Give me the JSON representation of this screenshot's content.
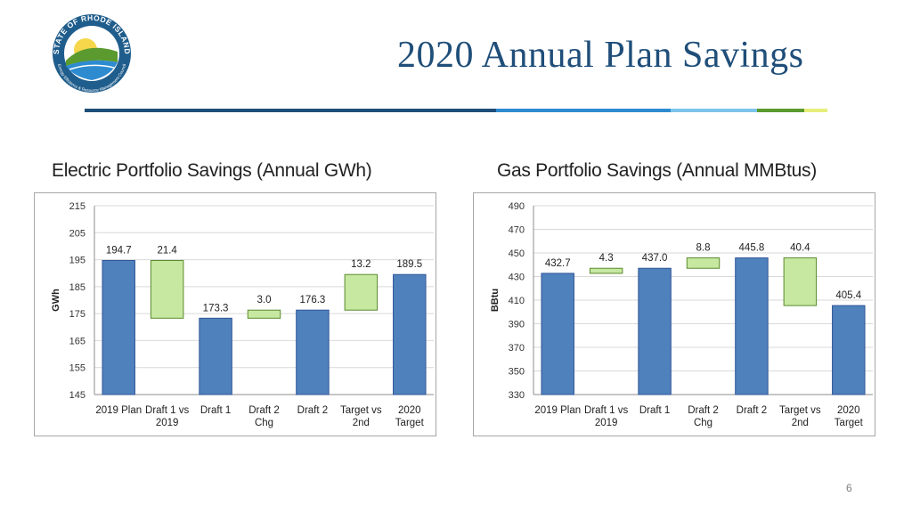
{
  "slide": {
    "title": "2020 Annual Plan Savings",
    "page_number": "6",
    "logo_text": "STATE OF RHODE ISLAND",
    "logo_subtext": "Energy Efficiency & Resource Management Council"
  },
  "colors": {
    "title": "#1f4e79",
    "bar_fill": "#4f81bd",
    "bar_stroke": "#2f5597",
    "delta_fill": "#c6e8a0",
    "delta_stroke": "#5b8a2e",
    "rule": [
      "#1f4e79",
      "#2e8bd0",
      "#7cc4ea",
      "#5b9a2e",
      "#e6ee7a"
    ]
  },
  "chart_data": [
    {
      "type": "bar",
      "subtype": "waterfall",
      "heading": "Electric Portfolio Savings (Annual GWh)",
      "ylabel": "GWh",
      "ylim": [
        145,
        215
      ],
      "yticks": [
        145,
        155,
        165,
        175,
        185,
        195,
        205,
        215
      ],
      "grid": true,
      "categories": [
        "2019 Plan",
        "Draft 1 vs 2019",
        "Draft 1",
        "Draft 2 Chg",
        "Draft 2",
        "Target vs 2nd",
        "2020 Target"
      ],
      "category_lines": [
        [
          "2019 Plan"
        ],
        [
          "Draft 1 vs",
          "2019"
        ],
        [
          "Draft 1"
        ],
        [
          "Draft 2",
          "Chg"
        ],
        [
          "Draft 2"
        ],
        [
          "Target vs",
          "2nd"
        ],
        [
          "2020",
          "Target"
        ]
      ],
      "bars": [
        {
          "kind": "total",
          "value": 194.7,
          "label": "194.7"
        },
        {
          "kind": "delta",
          "low": 173.3,
          "high": 194.7,
          "label": "21.4"
        },
        {
          "kind": "total",
          "value": 173.3,
          "label": "173.3"
        },
        {
          "kind": "delta",
          "low": 173.3,
          "high": 176.3,
          "label": "3.0"
        },
        {
          "kind": "total",
          "value": 176.3,
          "label": "176.3"
        },
        {
          "kind": "delta",
          "low": 176.3,
          "high": 189.5,
          "label": "13.2"
        },
        {
          "kind": "total",
          "value": 189.5,
          "label": "189.5"
        }
      ]
    },
    {
      "type": "bar",
      "subtype": "waterfall",
      "heading": "Gas Portfolio Savings (Annual MMBtus)",
      "ylabel": "BBtu",
      "ylim": [
        330,
        490
      ],
      "yticks": [
        330,
        350,
        370,
        390,
        410,
        430,
        450,
        470,
        490
      ],
      "grid": true,
      "categories": [
        "2019 Plan",
        "Draft 1 vs 2019",
        "Draft 1",
        "Draft 2 Chg",
        "Draft 2",
        "Target vs 2nd",
        "2020 Target"
      ],
      "category_lines": [
        [
          "2019 Plan"
        ],
        [
          "Draft 1 vs",
          "2019"
        ],
        [
          "Draft 1"
        ],
        [
          "Draft 2",
          "Chg"
        ],
        [
          "Draft 2"
        ],
        [
          "Target vs",
          "2nd"
        ],
        [
          "2020",
          "Target"
        ]
      ],
      "bars": [
        {
          "kind": "total",
          "value": 432.7,
          "label": "432.7"
        },
        {
          "kind": "delta",
          "low": 432.7,
          "high": 437.0,
          "label": "4.3"
        },
        {
          "kind": "total",
          "value": 437.0,
          "label": "437.0"
        },
        {
          "kind": "delta",
          "low": 437.0,
          "high": 445.8,
          "label": "8.8"
        },
        {
          "kind": "total",
          "value": 445.8,
          "label": "445.8"
        },
        {
          "kind": "delta",
          "low": 405.4,
          "high": 445.8,
          "label": "40.4"
        },
        {
          "kind": "total",
          "value": 405.4,
          "label": "405.4"
        }
      ]
    }
  ]
}
